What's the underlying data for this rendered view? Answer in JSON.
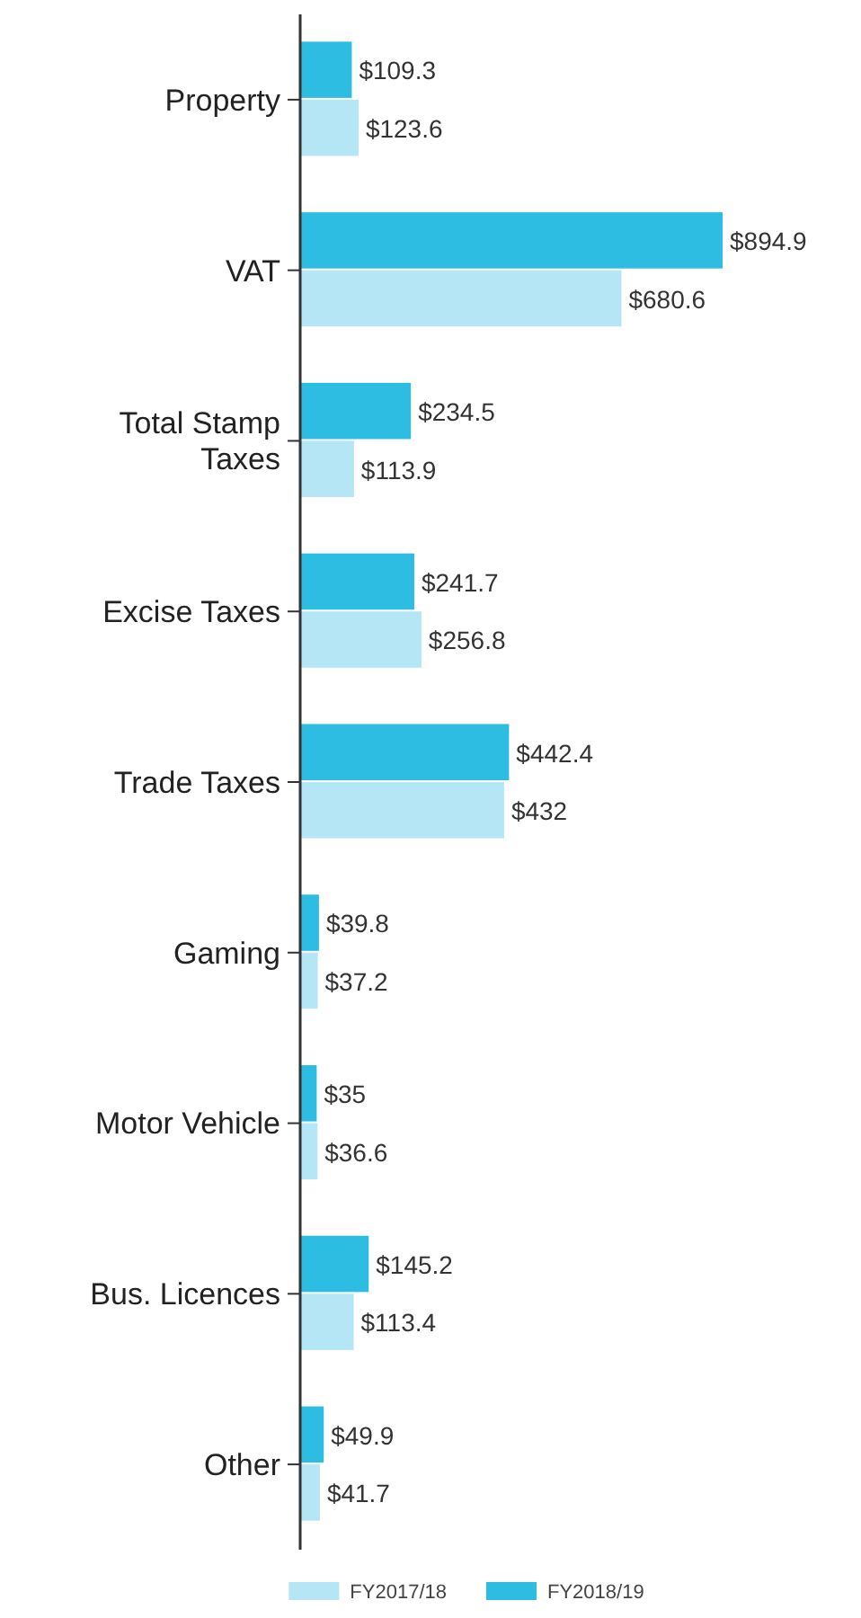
{
  "chart_data": {
    "type": "bar",
    "orientation": "horizontal",
    "categories": [
      "Property",
      "VAT",
      "Total Stamp Taxes",
      "Excise Taxes",
      "Trade Taxes",
      "Gaming",
      "Motor Vehicle",
      "Bus. Licences",
      "Other"
    ],
    "series": [
      {
        "name": "FY2017/18",
        "color": "#b5e6f5",
        "values": [
          123.6,
          680.6,
          113.9,
          256.8,
          432,
          37.2,
          36.6,
          113.4,
          41.7
        ],
        "value_labels": [
          "$123.6",
          "$680.6",
          "$113.9",
          "$256.8",
          "$432",
          "$37.2",
          "$36.6",
          "$113.4",
          "$41.7"
        ]
      },
      {
        "name": "FY2018/19",
        "color": "#2dbde3",
        "values": [
          109.3,
          894.9,
          234.5,
          241.7,
          442.4,
          39.8,
          35,
          145.2,
          49.9
        ],
        "value_labels": [
          "$109.3",
          "$894.9",
          "$234.5",
          "$241.7",
          "$442.4",
          "$39.8",
          "$35",
          "$145.2",
          "$49.9"
        ]
      }
    ],
    "legend": "bottom"
  }
}
